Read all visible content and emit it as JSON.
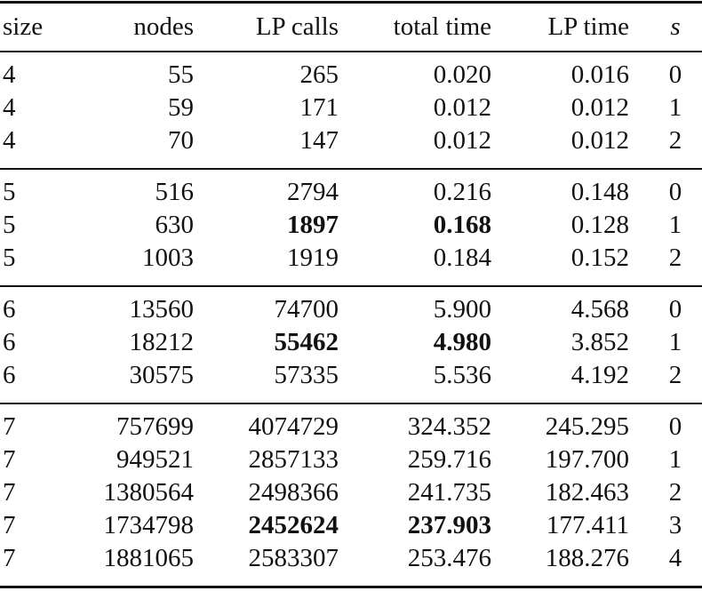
{
  "table": {
    "header": [
      "size",
      "nodes",
      "LP calls",
      "total time",
      "LP time",
      "s"
    ],
    "groups": [
      {
        "rows": [
          [
            "4",
            "55",
            "265",
            "0.020",
            "0.016",
            "0"
          ],
          [
            "4",
            "59",
            "171",
            "0.012",
            "0.012",
            "1"
          ],
          [
            "4",
            "70",
            "147",
            "0.012",
            "0.012",
            "2"
          ]
        ]
      },
      {
        "rows": [
          [
            "5",
            "516",
            "2794",
            "0.216",
            "0.148",
            "0"
          ],
          [
            "5",
            "630",
            {
              "text": "1897",
              "bold": true
            },
            {
              "text": "0.168",
              "bold": true
            },
            "0.128",
            "1"
          ],
          [
            "5",
            "1003",
            "1919",
            "0.184",
            "0.152",
            "2"
          ]
        ]
      },
      {
        "rows": [
          [
            "6",
            "13560",
            "74700",
            "5.900",
            "4.568",
            "0"
          ],
          [
            "6",
            "18212",
            {
              "text": "55462",
              "bold": true
            },
            {
              "text": "4.980",
              "bold": true
            },
            "3.852",
            "1"
          ],
          [
            "6",
            "30575",
            "57335",
            "5.536",
            "4.192",
            "2"
          ]
        ]
      },
      {
        "rows": [
          [
            "7",
            "757699",
            "4074729",
            "324.352",
            "245.295",
            "0"
          ],
          [
            "7",
            "949521",
            "2857133",
            "259.716",
            "197.700",
            "1"
          ],
          [
            "7",
            "1380564",
            "2498366",
            "241.735",
            "182.463",
            "2"
          ],
          [
            "7",
            "1734798",
            {
              "text": "2452624",
              "bold": true
            },
            {
              "text": "237.903",
              "bold": true
            },
            "177.411",
            "3"
          ],
          [
            "7",
            "1881065",
            "2583307",
            "253.476",
            "188.276",
            "4"
          ]
        ]
      }
    ]
  }
}
